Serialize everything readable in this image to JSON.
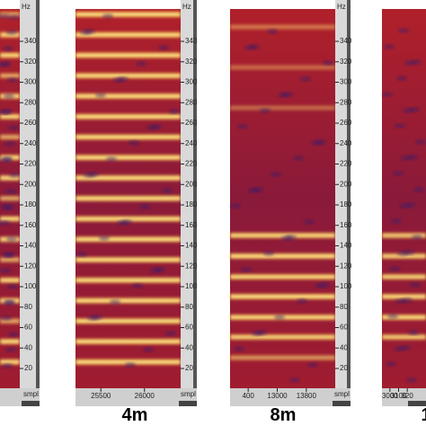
{
  "panels": [
    {
      "y_unit": "Hz",
      "x_unit": "smpl",
      "yticks": [
        "340",
        "320",
        "300",
        "280",
        "260",
        "240",
        "220",
        "200",
        "180",
        "160",
        "140",
        "120",
        "100",
        "80",
        "60",
        "40",
        "20"
      ],
      "xticks": []
    },
    {
      "label": "4m",
      "y_unit": "Hz",
      "x_unit": "smpl",
      "yticks": [
        "340",
        "320",
        "300",
        "280",
        "260",
        "240",
        "220",
        "200",
        "180",
        "160",
        "140",
        "120",
        "100",
        "80",
        "60",
        "40",
        "20"
      ],
      "xticks": [
        "25500",
        "26000"
      ]
    },
    {
      "label": "8m",
      "y_unit": "Hz",
      "x_unit": "smpl",
      "yticks": [
        "340",
        "320",
        "300",
        "280",
        "260",
        "240",
        "220",
        "200",
        "180",
        "160",
        "140",
        "120",
        "100",
        "80",
        "60",
        "40",
        "20"
      ],
      "xticks": [
        "400",
        "13000",
        "13800"
      ]
    },
    {
      "label": "1",
      "xticks": [
        "3000",
        "3100",
        "320"
      ]
    }
  ]
}
